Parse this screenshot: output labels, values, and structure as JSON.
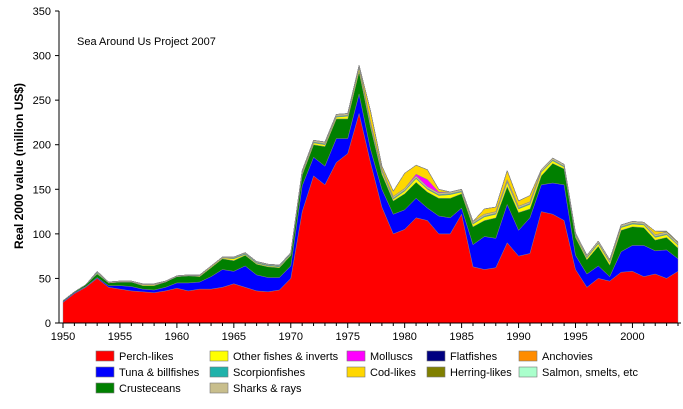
{
  "chart_data": {
    "type": "area",
    "stacked": true,
    "title": "Sea Around Us Project 2007",
    "xlabel": "",
    "ylabel": "Real 2000 value (million US$)",
    "xlim": [
      1950,
      2004
    ],
    "ylim": [
      0,
      350
    ],
    "yticks": [
      0,
      50,
      100,
      150,
      200,
      250,
      300,
      350
    ],
    "xticks": [
      1950,
      1955,
      1960,
      1965,
      1970,
      1975,
      1980,
      1985,
      1990,
      1995,
      2000
    ],
    "x": [
      1950,
      1951,
      1952,
      1953,
      1954,
      1955,
      1956,
      1957,
      1958,
      1959,
      1960,
      1961,
      1962,
      1963,
      1964,
      1965,
      1966,
      1967,
      1968,
      1969,
      1970,
      1971,
      1972,
      1973,
      1974,
      1975,
      1976,
      1977,
      1978,
      1979,
      1980,
      1981,
      1982,
      1983,
      1984,
      1985,
      1986,
      1987,
      1988,
      1989,
      1990,
      1991,
      1992,
      1993,
      1994,
      1995,
      1996,
      1997,
      1998,
      1999,
      2000,
      2001,
      2002,
      2003,
      2004
    ],
    "series": [
      {
        "name": "Perch-likes",
        "color": "#ff0000",
        "values": [
          23,
          33,
          40,
          50,
          40,
          38,
          36,
          35,
          34,
          36,
          39,
          36,
          38,
          38,
          40,
          44,
          40,
          36,
          35,
          37,
          50,
          125,
          165,
          155,
          180,
          190,
          235,
          180,
          130,
          100,
          105,
          118,
          115,
          100,
          100,
          122,
          63,
          60,
          62,
          90,
          75,
          78,
          125,
          122,
          115,
          60,
          40,
          50,
          47,
          57,
          58,
          52,
          55,
          50,
          58
        ]
      },
      {
        "name": "Tuna & billfishes",
        "color": "#0000ff",
        "values": [
          1,
          1,
          1,
          1,
          2,
          4,
          5,
          3,
          3,
          4,
          6,
          9,
          8,
          14,
          20,
          14,
          24,
          18,
          16,
          14,
          14,
          29,
          21,
          21,
          27,
          17,
          22,
          15,
          20,
          22,
          22,
          22,
          14,
          20,
          18,
          7,
          25,
          37,
          33,
          43,
          29,
          40,
          30,
          35,
          40,
          16,
          15,
          14,
          5,
          23,
          29,
          35,
          26,
          32,
          14
        ]
      },
      {
        "name": "Crusteceans",
        "color": "#008000",
        "values": [
          1,
          1,
          2,
          4,
          3,
          4,
          5,
          4,
          5,
          6,
          7,
          8,
          6,
          10,
          12,
          12,
          12,
          12,
          12,
          11,
          12,
          12,
          14,
          22,
          22,
          22,
          25,
          25,
          17,
          15,
          18,
          18,
          18,
          20,
          22,
          16,
          20,
          18,
          23,
          20,
          20,
          10,
          10,
          22,
          18,
          20,
          16,
          22,
          13,
          24,
          21,
          20,
          12,
          14,
          12
        ]
      },
      {
        "name": "Other fishes & inverts",
        "color": "#ffff00",
        "values": [
          0,
          0,
          0,
          1,
          0,
          0,
          0,
          1,
          1,
          0,
          0,
          0,
          1,
          1,
          1,
          2,
          1,
          1,
          1,
          1,
          1,
          2,
          2,
          2,
          2,
          3,
          4,
          3,
          3,
          2,
          3,
          4,
          3,
          3,
          4,
          2,
          3,
          4,
          4,
          5,
          4,
          5,
          4,
          3,
          2,
          2,
          2,
          3,
          3,
          3,
          3,
          3,
          3,
          3,
          3
        ]
      },
      {
        "name": "Scorpionfishes",
        "color": "#20b2aa",
        "values": [
          0,
          0,
          0,
          1,
          0,
          0,
          0,
          0,
          0,
          0,
          0,
          0,
          0,
          0,
          0,
          1,
          1,
          1,
          1,
          1,
          1,
          1,
          1,
          1,
          1,
          1,
          1,
          1,
          1,
          1,
          1,
          1,
          1,
          1,
          1,
          1,
          1,
          1,
          1,
          1,
          1,
          1,
          1,
          1,
          1,
          1,
          1,
          1,
          1,
          1,
          1,
          1,
          1,
          1,
          1
        ]
      },
      {
        "name": "Sharks & rays",
        "color": "#c8be8c",
        "values": [
          0,
          0,
          0,
          1,
          1,
          1,
          1,
          1,
          1,
          1,
          1,
          1,
          1,
          1,
          1,
          1,
          1,
          1,
          1,
          1,
          1,
          2,
          2,
          2,
          2,
          2,
          2,
          2,
          2,
          2,
          2,
          2,
          2,
          2,
          2,
          2,
          2,
          2,
          2,
          2,
          2,
          2,
          2,
          2,
          2,
          2,
          2,
          2,
          2,
          2,
          2,
          2,
          2,
          2,
          2
        ]
      },
      {
        "name": "Molluscs",
        "color": "#ff00ff",
        "values": [
          0,
          0,
          0,
          0,
          0,
          0,
          0,
          0,
          0,
          0,
          0,
          0,
          0,
          0,
          0,
          0,
          0,
          0,
          0,
          0,
          0,
          0,
          0,
          0,
          0,
          0,
          0,
          0,
          0,
          0,
          0,
          2,
          8,
          1,
          0,
          0,
          0,
          0,
          0,
          0,
          0,
          0,
          0,
          0,
          0,
          0,
          0,
          0,
          0,
          0,
          0,
          0,
          0,
          0,
          0
        ]
      },
      {
        "name": "Cod-likes",
        "color": "#ffd700",
        "values": [
          0,
          0,
          0,
          0,
          0,
          0,
          0,
          0,
          0,
          0,
          0,
          0,
          0,
          0,
          0,
          0,
          0,
          0,
          0,
          0,
          0,
          0,
          0,
          0,
          0,
          0,
          0,
          12,
          3,
          6,
          17,
          10,
          11,
          3,
          0,
          0,
          0,
          6,
          5,
          10,
          6,
          7,
          0,
          0,
          0,
          0,
          0,
          0,
          0,
          0,
          0,
          0,
          4,
          0,
          0
        ]
      },
      {
        "name": "Herring-likes",
        "color": "#808000",
        "values": [
          0,
          0,
          0,
          0,
          0,
          0,
          0,
          0,
          0,
          0,
          0,
          0,
          0,
          0,
          0,
          0,
          0,
          0,
          0,
          0,
          0,
          0,
          0,
          0,
          0,
          0,
          0,
          0,
          0,
          0,
          0,
          0,
          0,
          0,
          0,
          0,
          0,
          0,
          0,
          0,
          0,
          0,
          0,
          0,
          0,
          0,
          0,
          0,
          0,
          0,
          0,
          0,
          0,
          1,
          1
        ]
      },
      {
        "name": "Flatfishes",
        "color": "#000080",
        "values": [
          0,
          0,
          0,
          0,
          0,
          0,
          0,
          0,
          0,
          0,
          0,
          0,
          0,
          0,
          0,
          0,
          0,
          0,
          0,
          0,
          0,
          0,
          0,
          0,
          0,
          0,
          0,
          0,
          0,
          0,
          0,
          0,
          0,
          0,
          0,
          0,
          0,
          0,
          0,
          0,
          0,
          0,
          0,
          0,
          0,
          0,
          0,
          0,
          0,
          0,
          0,
          0,
          0,
          0,
          0
        ]
      },
      {
        "name": "Anchovies",
        "color": "#ff8c00",
        "values": [
          0,
          0,
          0,
          0,
          0,
          0,
          0,
          0,
          0,
          0,
          0,
          0,
          0,
          0,
          0,
          0,
          0,
          0,
          0,
          0,
          0,
          0,
          0,
          0,
          0,
          0,
          0,
          0,
          0,
          0,
          0,
          0,
          0,
          0,
          0,
          0,
          0,
          0,
          0,
          0,
          0,
          0,
          0,
          0,
          0,
          0,
          0,
          0,
          0,
          0,
          0,
          0,
          0,
          0,
          0
        ]
      },
      {
        "name": "Salmon, smelts, etc",
        "color": "#aaffcc",
        "values": [
          0,
          0,
          0,
          0,
          0,
          0,
          0,
          0,
          0,
          0,
          0,
          0,
          0,
          0,
          0,
          0,
          0,
          0,
          0,
          0,
          0,
          0,
          0,
          0,
          0,
          0,
          0,
          0,
          0,
          0,
          0,
          0,
          0,
          0,
          0,
          0,
          0,
          0,
          0,
          0,
          0,
          0,
          0,
          0,
          0,
          0,
          0,
          0,
          0,
          0,
          0,
          0,
          0,
          0,
          0
        ]
      }
    ],
    "legend": {
      "placement": "bottom",
      "order": [
        "Perch-likes",
        "Other fishes & inverts",
        "Molluscs",
        "Flatfishes",
        "Anchovies",
        "Tuna & billfishes",
        "Scorpionfishes",
        "Cod-likes",
        "Herring-likes",
        "Salmon, smelts, etc",
        "Crusteceans",
        "Sharks & rays"
      ]
    }
  }
}
